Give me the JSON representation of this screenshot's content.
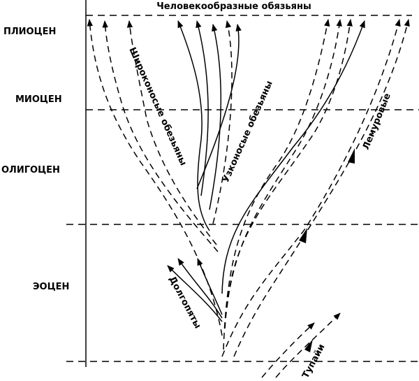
{
  "title": "Человекообразные обязьяны",
  "epochs": [
    {
      "label": "ПЛИОЦЕН"
    },
    {
      "label": "МИОЦЕН"
    },
    {
      "label": "ОЛИГОЦЕН"
    },
    {
      "label": "ЭОЦЕН"
    }
  ],
  "groups": [
    {
      "label": "Широконосые обезьяны"
    },
    {
      "label": "Узконосые обезьяны"
    },
    {
      "label": "Лемуровые"
    },
    {
      "label": "Долгопяты"
    },
    {
      "label": "Тупайи"
    }
  ]
}
